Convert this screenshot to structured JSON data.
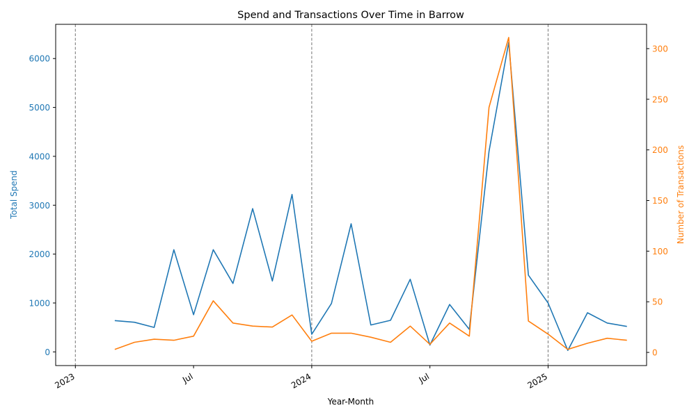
{
  "chart_data": {
    "type": "line",
    "title": "Spend and Transactions Over Time in Barrow",
    "xlabel": "Year-Month",
    "x_ticks": [
      "2023",
      "Jul",
      "2024",
      "Jul",
      "2025"
    ],
    "x_tick_dates": [
      "2023-01",
      "2023-07",
      "2024-01",
      "2024-07",
      "2025-01"
    ],
    "vlines": [
      "2023-01",
      "2024-01",
      "2025-01"
    ],
    "x_range": [
      "2022-12",
      "2025-06"
    ],
    "x": [
      "2023-03",
      "2023-04",
      "2023-05",
      "2023-06",
      "2023-07",
      "2023-08",
      "2023-09",
      "2023-10",
      "2023-11",
      "2023-12",
      "2024-01",
      "2024-02",
      "2024-03",
      "2024-04",
      "2024-05",
      "2024-06",
      "2024-07",
      "2024-08",
      "2024-09",
      "2024-10",
      "2024-11",
      "2024-12",
      "2025-01",
      "2025-02",
      "2025-03",
      "2025-04",
      "2025-05"
    ],
    "left_axis": {
      "label": "Total Spend",
      "color": "#1f77b4",
      "ylim": [
        -280,
        6700
      ],
      "ticks": [
        0,
        1000,
        2000,
        3000,
        4000,
        5000,
        6000
      ]
    },
    "right_axis": {
      "label": "Number of Transactions",
      "color": "#ff7f0e",
      "ylim": [
        -13,
        324
      ],
      "ticks": [
        0,
        50,
        100,
        150,
        200,
        250,
        300
      ]
    },
    "series": [
      {
        "axis": "left",
        "color": "#1f77b4",
        "values": [
          640,
          605,
          500,
          2090,
          760,
          2090,
          1400,
          2930,
          1450,
          3220,
          360,
          990,
          2620,
          550,
          645,
          1485,
          140,
          970,
          460,
          4100,
          6330,
          1570,
          1000,
          30,
          800,
          590,
          520
        ]
      },
      {
        "axis": "right",
        "color": "#ff7f0e",
        "values": [
          3,
          10,
          13,
          12,
          16,
          51,
          29,
          26,
          25,
          37,
          11,
          19,
          19,
          15,
          10,
          26,
          8,
          29,
          16,
          242,
          311,
          31,
          18,
          3,
          9,
          14,
          12
        ]
      }
    ]
  }
}
